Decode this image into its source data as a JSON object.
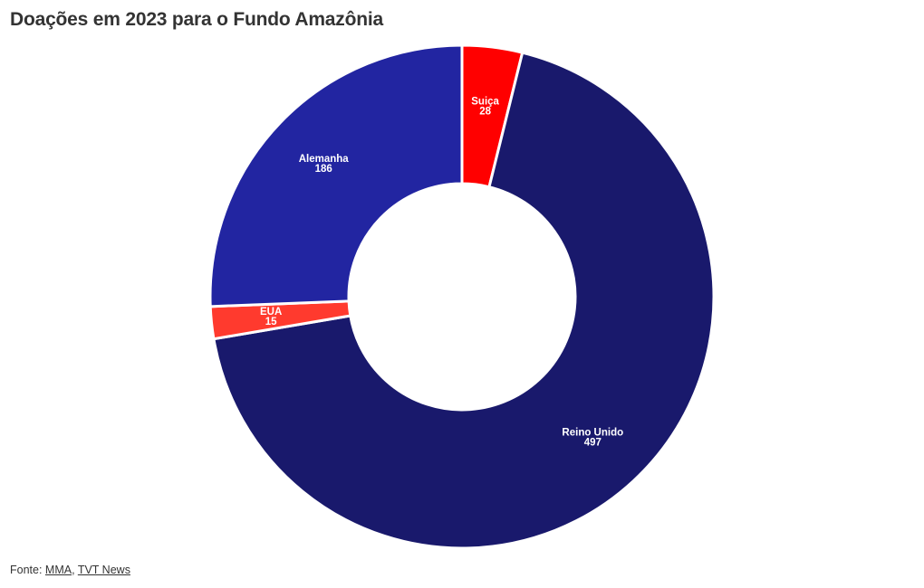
{
  "chart_data": {
    "type": "pie",
    "title": "Doações em 2023 para o Fundo Amazônia",
    "donut": true,
    "slices": [
      {
        "label": "Suiça",
        "value": 28,
        "color": "#ff0000"
      },
      {
        "label": "Reino Unido",
        "value": 497,
        "color": "#19196c"
      },
      {
        "label": "EUA",
        "value": 15,
        "color": "#ff3a2e"
      },
      {
        "label": "Alemanha",
        "value": 186,
        "color": "#2225a1"
      }
    ]
  },
  "footer": {
    "prefix": "Fonte: ",
    "sources": [
      "MMA",
      "TVT News"
    ],
    "separator": ", "
  }
}
